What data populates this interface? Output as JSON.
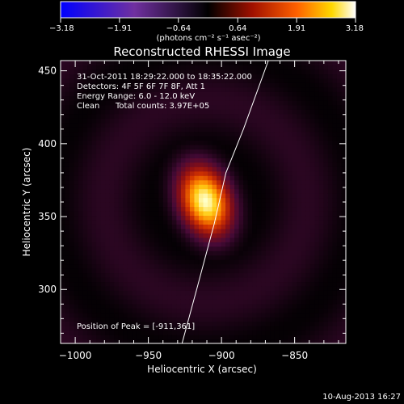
{
  "chart_data": {
    "type": "heatmap",
    "title": "Reconstructed RHESSI Image",
    "xlabel": "Heliocentric X (arcsec)",
    "ylabel": "Heliocentric Y (arcsec)",
    "xlim": [
      -1010,
      -815
    ],
    "ylim": [
      263,
      457
    ],
    "x_ticks": [
      -1000,
      -950,
      -900,
      -850
    ],
    "x_tick_labels": [
      "−1000",
      "−950",
      "−900",
      "−850"
    ],
    "y_ticks": [
      300,
      350,
      400,
      450
    ],
    "y_tick_labels": [
      "300",
      "350",
      "400",
      "450"
    ],
    "colorbar": {
      "min": -3.18,
      "max": 3.18,
      "ticks": [
        -3.18,
        -1.91,
        -0.64,
        0.64,
        1.91,
        3.18
      ],
      "tick_labels": [
        "−3.18",
        "−1.91",
        "−0.64",
        "0.64",
        "1.91",
        "3.18"
      ],
      "units_label": "(photons cm⁻² s⁻¹ asec⁻²)"
    },
    "source": {
      "peak_x": -911,
      "peak_y": 361,
      "peak_value": 3.18,
      "sigma_major": 16,
      "sigma_minor": 11,
      "angle_deg": 20
    },
    "limb_curve": [
      [
        -927,
        263
      ],
      [
        -917,
        300
      ],
      [
        -905,
        345
      ],
      [
        -897,
        380
      ],
      [
        -885,
        410
      ],
      [
        -868,
        457
      ]
    ],
    "annotations": {
      "time_range": "31-Oct-2011 18:29:22.000 to 18:35:22.000",
      "detectors": "Detectors: 4F 5F 6F 7F 8F, Att 1",
      "energy_range": "Energy Range: 6.0 - 12.0 keV",
      "clean_label": "Clean",
      "total_counts": "Total counts: 3.97E+05",
      "peak_position": "Position of Peak = [-911,361]"
    },
    "footer_date": "10-Aug-2013 16:27"
  }
}
